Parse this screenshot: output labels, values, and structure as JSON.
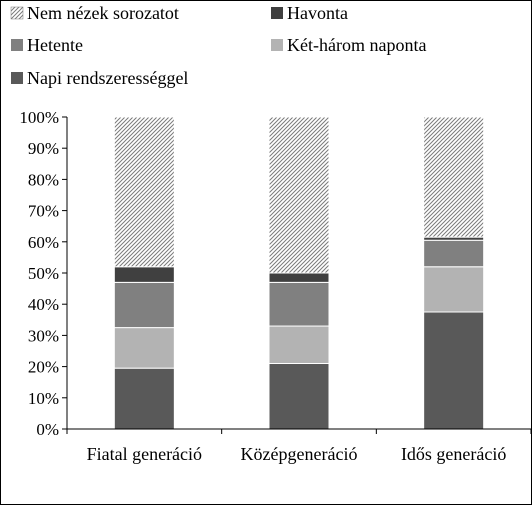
{
  "chart_data": {
    "type": "bar",
    "stacked": true,
    "percent": true,
    "categories": [
      "Fiatal generáció",
      "Középgeneráció",
      "Idős generáció"
    ],
    "series": [
      {
        "name": "Napi rendszerességgel",
        "color": "#595959",
        "pattern": "solid",
        "values": [
          19.5,
          21,
          37.5
        ]
      },
      {
        "name": "Két-három naponta",
        "color": "#b3b3b3",
        "pattern": "solid",
        "values": [
          13,
          12,
          14.5
        ]
      },
      {
        "name": "Hetente",
        "color": "#808080",
        "pattern": "solid",
        "values": [
          14.5,
          14,
          8.5
        ]
      },
      {
        "name": "Havonta",
        "color": "#404040",
        "pattern": "solid",
        "values": [
          5,
          3,
          1
        ]
      },
      {
        "name": "Nem nézek sorozatot",
        "color": "#9a9a9a",
        "pattern": "diagonal-hatch",
        "values": [
          48,
          50,
          38.5
        ]
      }
    ],
    "legend_order": [
      "Nem nézek sorozatot",
      "Havonta",
      "Hetente",
      "Két-három naponta",
      "Napi rendszerességgel"
    ],
    "legend_position": "top",
    "ylim": [
      0,
      100
    ],
    "y_ticks": [
      "0%",
      "10%",
      "20%",
      "30%",
      "40%",
      "50%",
      "60%",
      "70%",
      "80%",
      "90%",
      "100%"
    ],
    "grid": false,
    "title": "",
    "xlabel": "",
    "ylabel": ""
  }
}
